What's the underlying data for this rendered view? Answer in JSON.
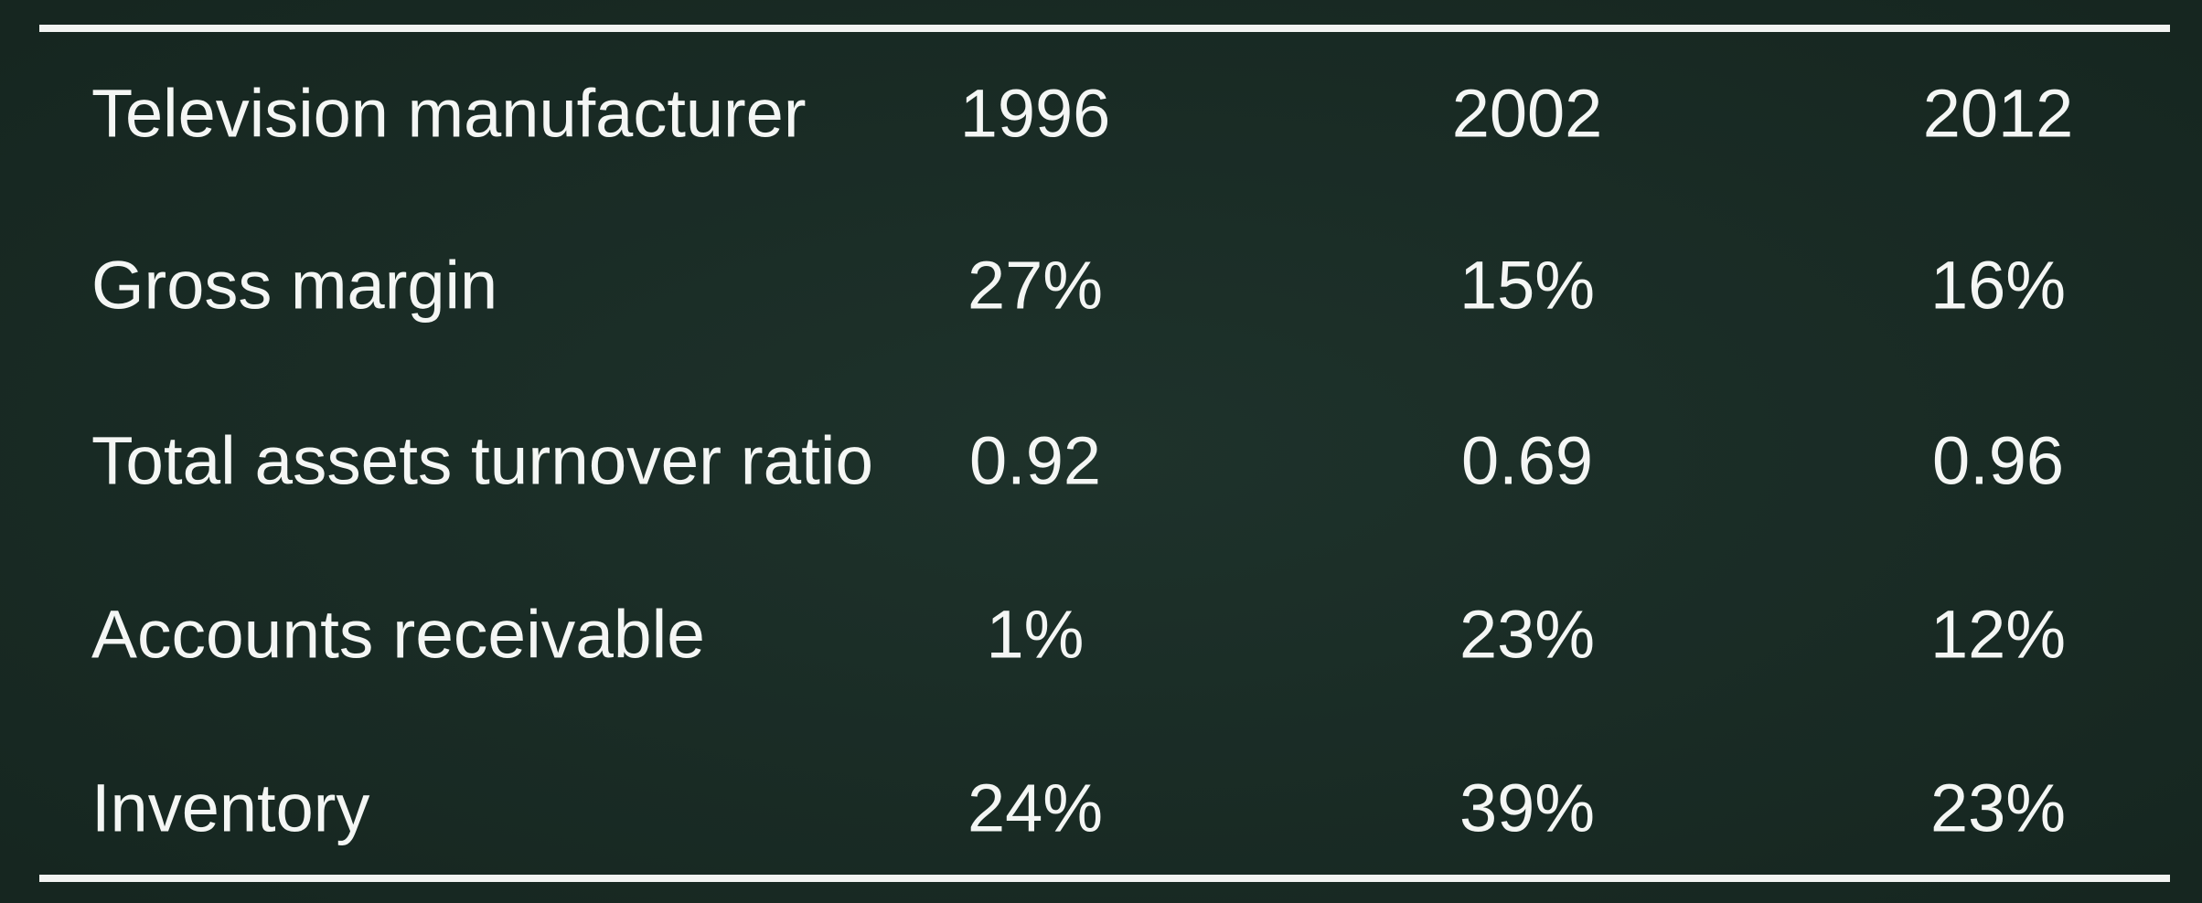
{
  "table": {
    "header": [
      "Television manufacturer",
      "1996",
      "2002",
      "2012"
    ],
    "rows": [
      [
        "Gross margin",
        "27%",
        "15%",
        "16%"
      ],
      [
        "Total assets turnover ratio",
        "0.92",
        "0.69",
        "0.96"
      ],
      [
        "Accounts receivable",
        "1%",
        "23%",
        "12%"
      ],
      [
        "Inventory",
        "24%",
        "39%",
        "23%"
      ]
    ]
  }
}
